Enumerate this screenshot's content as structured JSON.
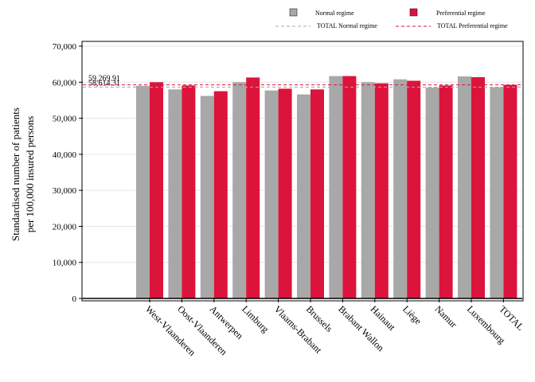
{
  "chart_data": {
    "type": "bar",
    "title": "",
    "xlabel": "",
    "ylabel": [
      "Standardised number of patients",
      "per 100,000 insured persons"
    ],
    "ylim": [
      0,
      70000
    ],
    "yticks": [
      0,
      10000,
      20000,
      30000,
      40000,
      50000,
      60000,
      70000
    ],
    "ytick_labels": [
      "0",
      "10,000",
      "20,000",
      "30,000",
      "40,000",
      "50,000",
      "60,000",
      "70,000"
    ],
    "grid": true,
    "legend_position": "top",
    "categories": [
      "West-Vlaanderen",
      "Oost-Vlaanderen",
      "Antwerpen",
      "Limburg",
      "Vlaams-Brabant",
      "Brussels",
      "Brabant Wallon",
      "Hainaut",
      "Liège",
      "Namur",
      "Luxembourg",
      "TOTAL"
    ],
    "series": [
      {
        "name": "Normal regime",
        "color": "#a8a8a8",
        "values": [
          59000,
          58000,
          56200,
          60000,
          57700,
          56600,
          61700,
          60000,
          60800,
          58500,
          61600,
          58614.31
        ]
      },
      {
        "name": "Preferential regime",
        "color": "#dc143c",
        "values": [
          60000,
          59100,
          57500,
          61300,
          58200,
          58000,
          61700,
          59700,
          60400,
          59100,
          61400,
          59269.91
        ]
      }
    ],
    "reference_lines": [
      {
        "name": "TOTAL Normal regime",
        "value": 58614.31,
        "label": "58,614.31",
        "color": "#a8a8a8"
      },
      {
        "name": "TOTAL Preferential regime",
        "value": 59269.91,
        "label": "59,269.91",
        "color": "#dc143c"
      }
    ]
  }
}
